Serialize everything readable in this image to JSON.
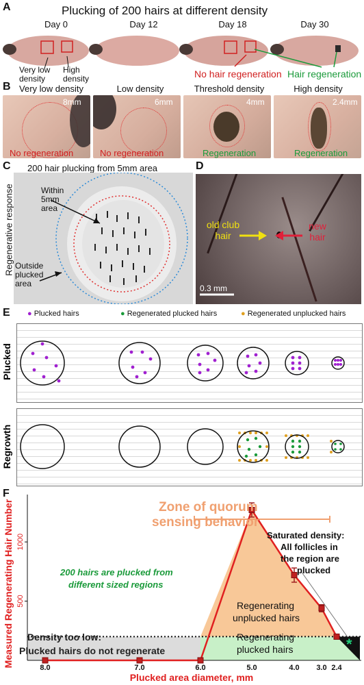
{
  "panel_a": {
    "label": "A",
    "title": "Plucking of 200 hairs at different density",
    "days": [
      "Day 0",
      "Day 12",
      "Day 18",
      "Day 30"
    ],
    "annot_very_low": "Very low density",
    "annot_high": "High density",
    "annot_no_regen": "No hair regeneration",
    "annot_regen": "Hair regeneration"
  },
  "panel_b": {
    "label": "B",
    "headers": [
      "Very low density",
      "Low density",
      "Threshold density",
      "High density"
    ],
    "sizes": [
      "8mm",
      "6mm",
      "4mm",
      "2.4mm"
    ],
    "captions": [
      "No regeneration",
      "No regeneration",
      "Regeneration",
      "Regeneration"
    ]
  },
  "panel_c": {
    "label": "C",
    "title": "200 hair plucking from 5mm area",
    "side_label": "Regenerative response",
    "within": "Within 5mm area",
    "outside": "Outside plucked area"
  },
  "panel_d": {
    "label": "D",
    "old": "old club hair",
    "new": "new hair",
    "scale": "0.3 mm"
  },
  "panel_e": {
    "label": "E",
    "legend": [
      "Plucked hairs",
      "Regenerated plucked hairs",
      "Regenerated unplucked hairs"
    ],
    "row1": "Plucked",
    "row2": "Regrowth",
    "colors": {
      "plucked": "#a020d0",
      "regen_plucked": "#1a9a3a",
      "regen_unplucked": "#e0a020"
    }
  },
  "panel_f": {
    "label": "F",
    "zone_title_1": "Zone of quorum",
    "zone_title_2": "sensing behavior",
    "plucked_note_1": "200 hairs are plucked from",
    "plucked_note_2": "different sized regions",
    "saturated_1": "Saturated density:",
    "saturated_2": "All follicles in",
    "saturated_3": "the region are",
    "saturated_4": "plucked",
    "too_low_1": "Density too low:",
    "too_low_2": "Plucked hairs do not regenerate",
    "regen_unplucked_1": "Regenerating",
    "regen_unplucked_2": "unplucked hairs",
    "regen_plucked_1": "Regenerating",
    "regen_plucked_2": "plucked hairs",
    "asterisk": "*"
  },
  "chart_data": {
    "type": "line",
    "xlabel": "Plucked area diameter, mm",
    "ylabel": "Measured Regenerating Hair Number",
    "x": [
      "8.0",
      "7.0",
      "6.0",
      "5.0",
      "4.0",
      "3.0",
      "2.4"
    ],
    "y_ticks": [
      500,
      1000
    ],
    "values": [
      0,
      0,
      0,
      1270,
      720,
      440,
      200
    ],
    "error": [
      0,
      0,
      0,
      60,
      60,
      30,
      0
    ],
    "plucked_threshold": 200,
    "ylim": [
      0,
      1400
    ],
    "colors": {
      "line": "#e02020",
      "unplucked_fill": "#f8c898",
      "plucked_fill": "#c8f0c8",
      "low_fill": "#dcdcdc",
      "zone": "#f0a070"
    }
  }
}
